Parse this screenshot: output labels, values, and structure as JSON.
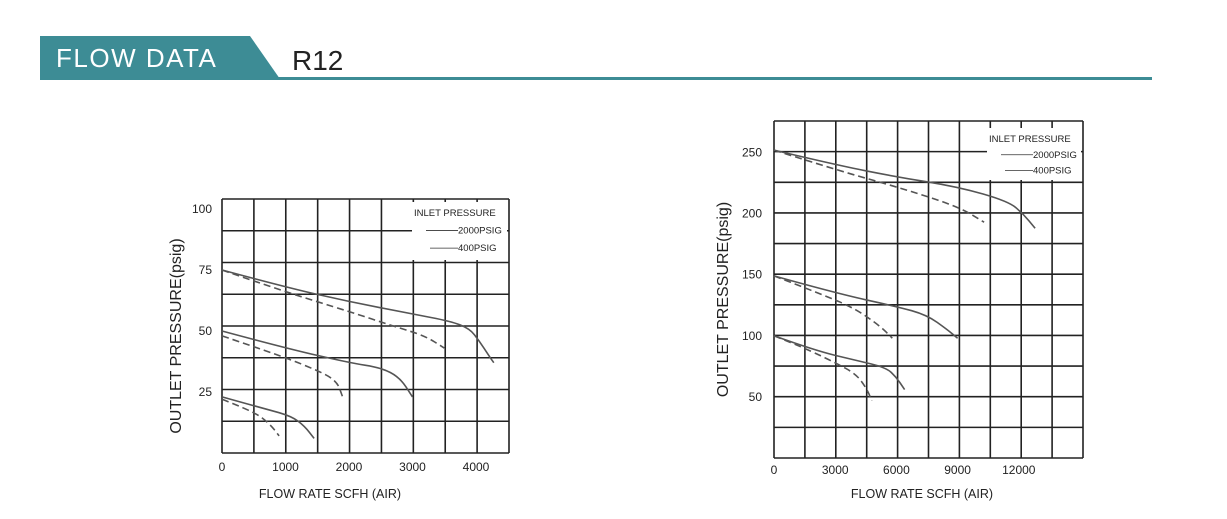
{
  "header": {
    "banner_label": "FLOW DATA",
    "model": "R12",
    "accent_color": "#3d8c95"
  },
  "chart_data": [
    {
      "type": "line",
      "title": "",
      "xlabel": "FLOW RATE SCFH (AIR)",
      "ylabel": "OUTLET PRESSURE(psig)",
      "xlim": [
        0,
        4400
      ],
      "ylim": [
        0,
        100
      ],
      "x_ticks": [
        "0",
        "1000",
        "2000",
        "3000",
        "4000"
      ],
      "y_ticks": [
        "25",
        "50",
        "75",
        "100"
      ],
      "grid": true,
      "legend": {
        "placement": "top-right",
        "title": "INLET PRESSURE",
        "entries": [
          "2000PSIG",
          "400PSIG"
        ]
      },
      "series": [
        {
          "name": "2000PSIG",
          "style": "solid",
          "set_point": 75,
          "points": [
            [
              0,
              75
            ],
            [
              1000,
              68
            ],
            [
              2000,
              62
            ],
            [
              3000,
              57
            ],
            [
              3600,
              54
            ],
            [
              3900,
              51
            ],
            [
              4050,
              46
            ],
            [
              4200,
              40
            ],
            [
              4280,
              37
            ]
          ]
        },
        {
          "name": "400PSIG",
          "style": "dashed",
          "set_point": 75,
          "points": [
            [
              0,
              75
            ],
            [
              1000,
              66
            ],
            [
              2000,
              58
            ],
            [
              2700,
              52
            ],
            [
              3200,
              48
            ],
            [
              3500,
              43
            ]
          ]
        },
        {
          "name": "2000PSIG",
          "style": "solid",
          "set_point": 50,
          "points": [
            [
              0,
              50
            ],
            [
              1000,
              43
            ],
            [
              2000,
              37
            ],
            [
              2500,
              35
            ],
            [
              2800,
              31
            ],
            [
              3000,
              23
            ]
          ]
        },
        {
          "name": "400PSIG",
          "style": "dashed",
          "set_point": 50,
          "points": [
            [
              0,
              48
            ],
            [
              800,
              41
            ],
            [
              1400,
              35
            ],
            [
              1800,
              30
            ],
            [
              1900,
              23
            ]
          ]
        },
        {
          "name": "2000PSIG",
          "style": "solid",
          "set_point": 25,
          "points": [
            [
              0,
              23
            ],
            [
              700,
              18
            ],
            [
              1100,
              15
            ],
            [
              1300,
              11
            ],
            [
              1450,
              6
            ]
          ]
        },
        {
          "name": "400PSIG",
          "style": "dashed",
          "set_point": 25,
          "points": [
            [
              0,
              22
            ],
            [
              500,
              17
            ],
            [
              750,
              12
            ],
            [
              900,
              7
            ]
          ]
        }
      ]
    },
    {
      "type": "line",
      "title": "",
      "xlabel": "FLOW RATE SCFH (AIR)",
      "ylabel": "OUTLET PRESSURE(psig)",
      "xlim": [
        0,
        15000
      ],
      "ylim": [
        0,
        275
      ],
      "x_ticks": [
        "0",
        "3000",
        "6000",
        "9000",
        "12000"
      ],
      "y_ticks": [
        "50",
        "100",
        "150",
        "200",
        "250"
      ],
      "grid": true,
      "legend": {
        "placement": "top-right",
        "title": "INLET PRESSURE",
        "entries": [
          "2000PSIG",
          "400PSIG"
        ]
      },
      "series": [
        {
          "name": "2000PSIG",
          "style": "solid",
          "set_point": 250,
          "points": [
            [
              0,
              252
            ],
            [
              3000,
              240
            ],
            [
              6000,
              230
            ],
            [
              9000,
              222
            ],
            [
              11500,
              210
            ],
            [
              12200,
              200
            ],
            [
              12800,
              188
            ]
          ]
        },
        {
          "name": "400PSIG",
          "style": "dashed",
          "set_point": 250,
          "points": [
            [
              0,
              252
            ],
            [
              3000,
              236
            ],
            [
              6000,
              222
            ],
            [
              9000,
              206
            ],
            [
              10300,
              193
            ]
          ]
        },
        {
          "name": "2000PSIG",
          "style": "solid",
          "set_point": 150,
          "points": [
            [
              0,
              149
            ],
            [
              3000,
              135
            ],
            [
              6000,
              124
            ],
            [
              7500,
              117
            ],
            [
              8500,
              105
            ],
            [
              9000,
              98
            ]
          ]
        },
        {
          "name": "400PSIG",
          "style": "dashed",
          "set_point": 150,
          "points": [
            [
              0,
              149
            ],
            [
              2500,
              133
            ],
            [
              4000,
              122
            ],
            [
              5200,
              108
            ],
            [
              5800,
              98
            ]
          ]
        },
        {
          "name": "2000PSIG",
          "style": "solid",
          "set_point": 100,
          "points": [
            [
              0,
              100
            ],
            [
              2000,
              88
            ],
            [
              4000,
              80
            ],
            [
              5500,
              74
            ],
            [
              6000,
              66
            ],
            [
              6400,
              56
            ]
          ]
        },
        {
          "name": "400PSIG",
          "style": "dashed",
          "set_point": 100,
          "points": [
            [
              0,
              100
            ],
            [
              1500,
              90
            ],
            [
              3000,
              78
            ],
            [
              4000,
              69
            ],
            [
              4500,
              58
            ],
            [
              4800,
              47
            ]
          ]
        }
      ]
    }
  ]
}
